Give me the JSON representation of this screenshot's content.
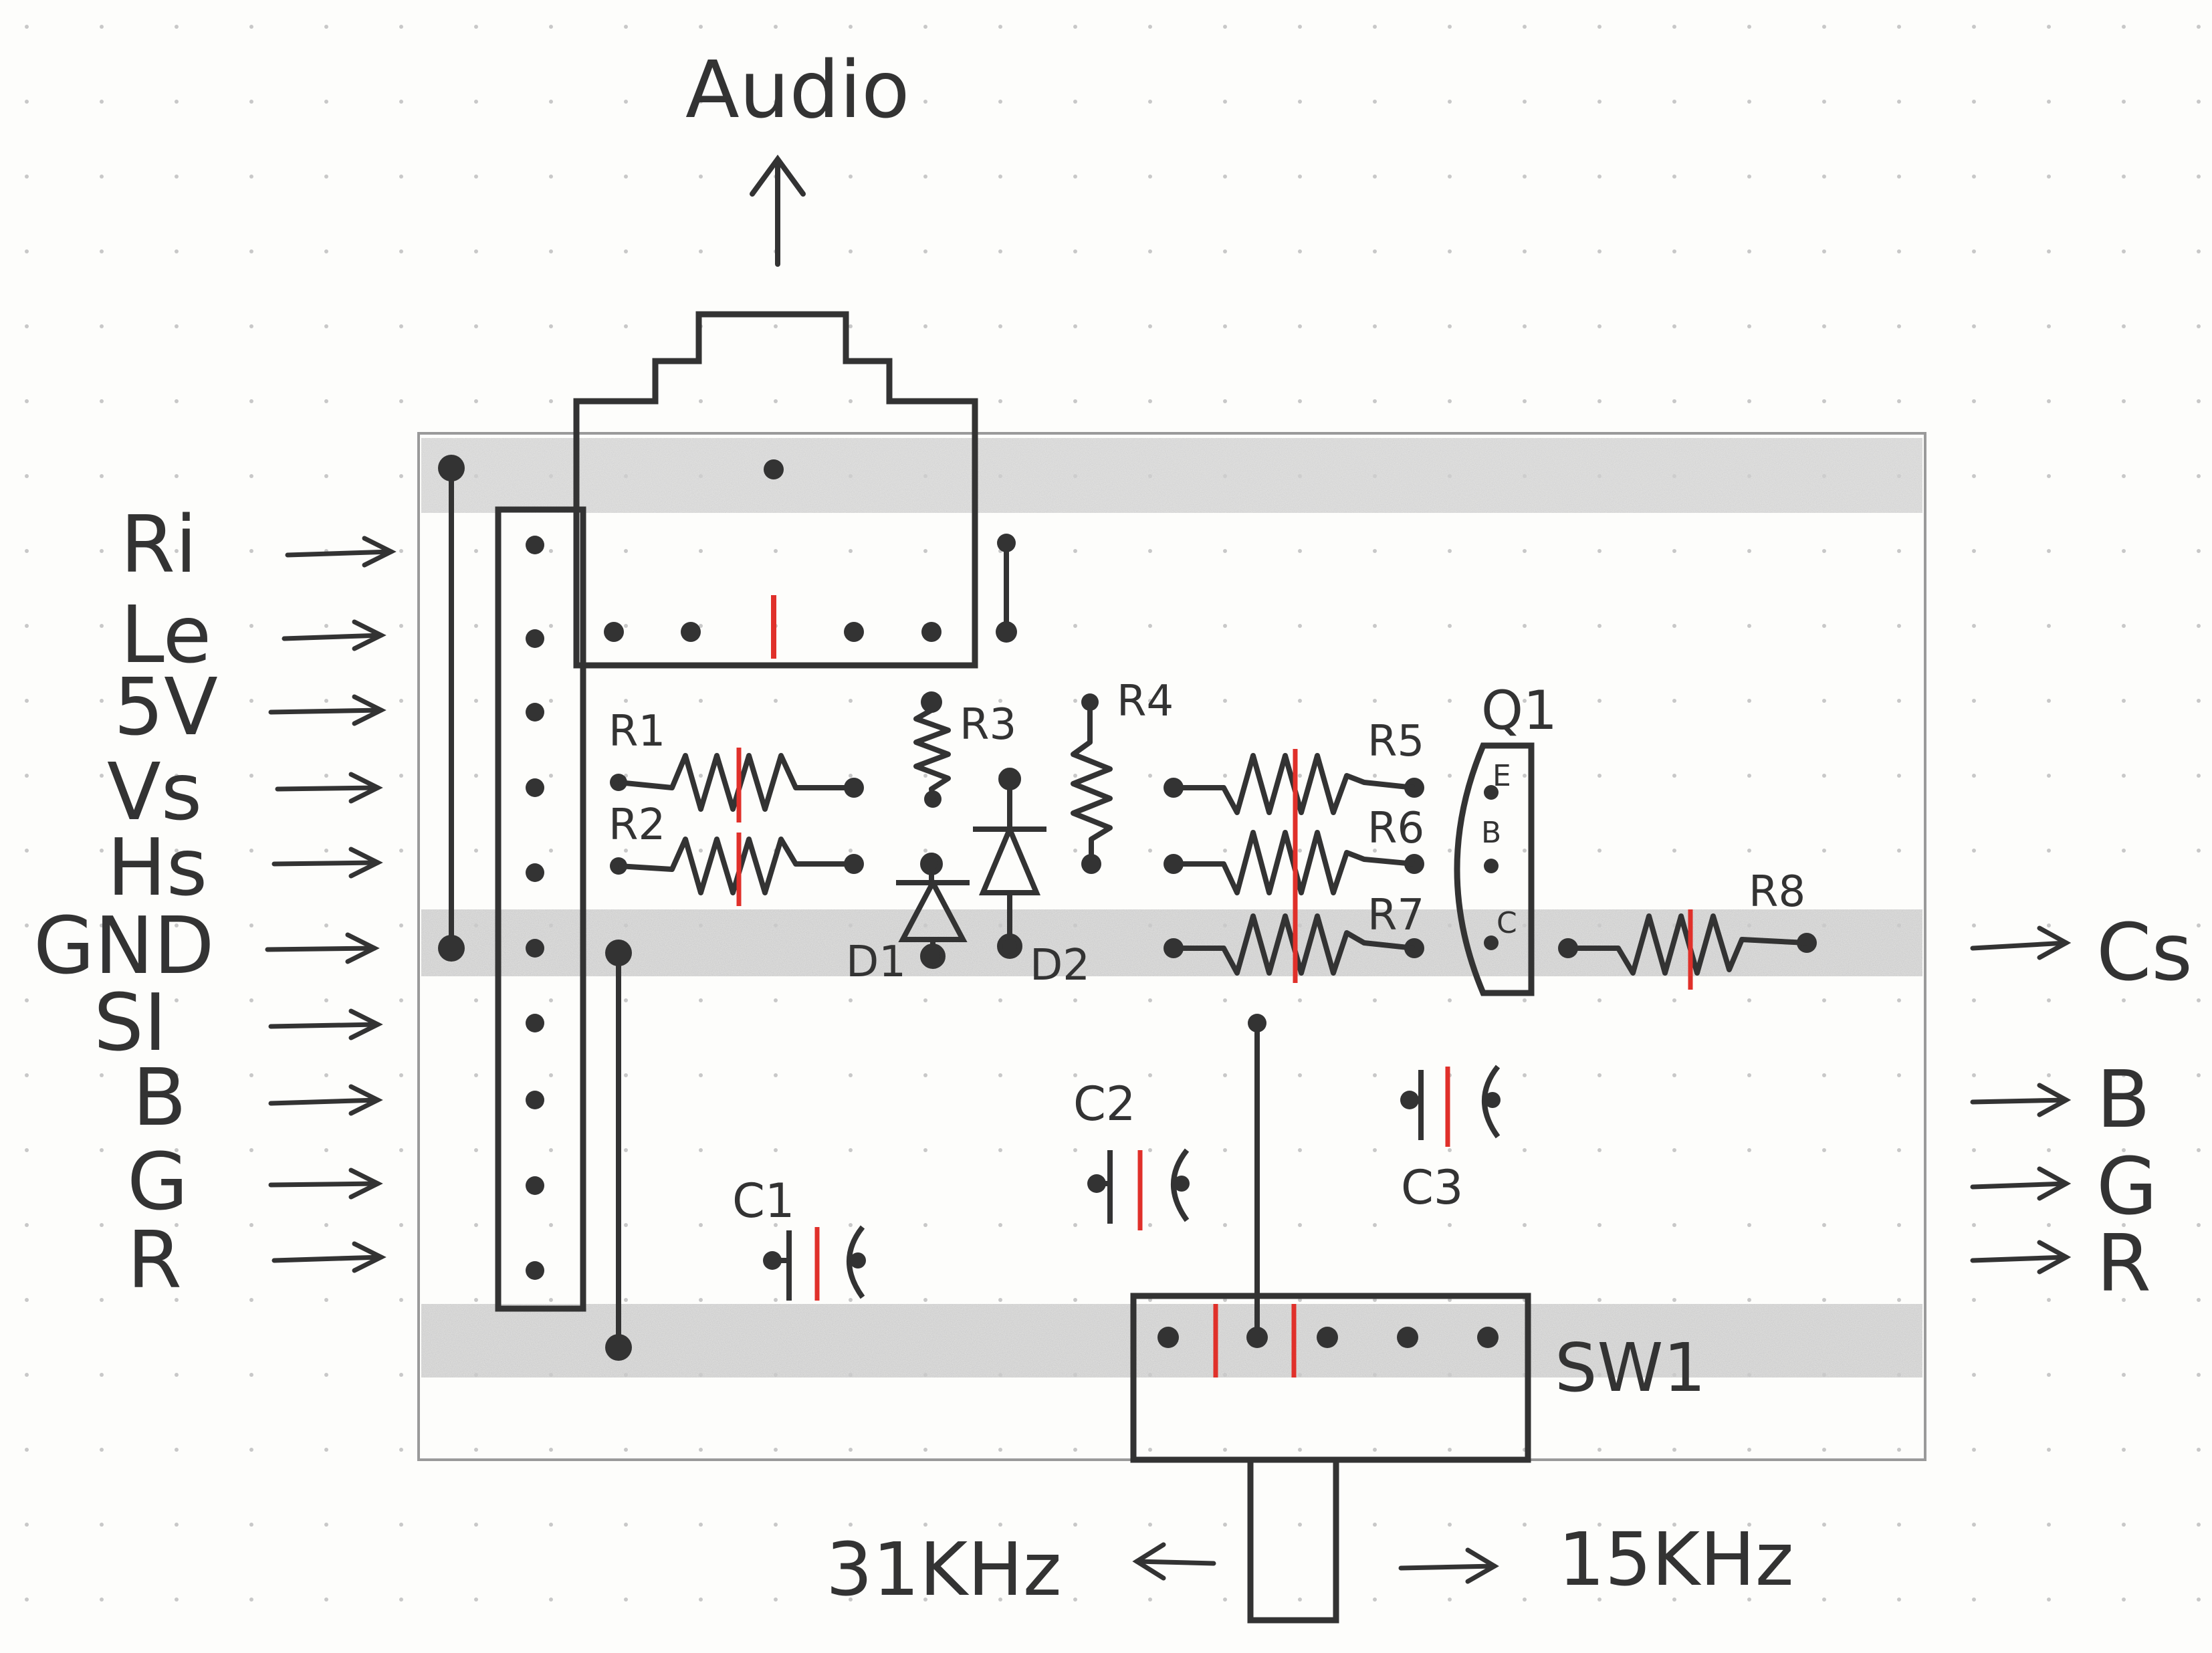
{
  "title": "Audio",
  "inputs": [
    "Ri",
    "Le",
    "5V",
    "Vs",
    "Hs",
    "GND",
    "SI",
    "B",
    "G",
    "R"
  ],
  "outputs": [
    "Cs",
    "B",
    "G",
    "R"
  ],
  "components": {
    "resistors": [
      "R1",
      "R2",
      "R3",
      "R4",
      "R5",
      "R6",
      "R7",
      "R8"
    ],
    "diodes": [
      "D1",
      "D2"
    ],
    "capacitors": [
      "C1",
      "C2",
      "C3"
    ],
    "transistor": "Q1",
    "transistor_pins": [
      "E",
      "B",
      "C"
    ],
    "switch": "SW1"
  },
  "switch_positions": {
    "left": "31KHz",
    "right": "15KHz"
  },
  "colors": {
    "ink": "#333333",
    "cut_mark": "#e0302a",
    "board_band": "#d4d4d4",
    "grid_dot": "#c8c8c8"
  }
}
